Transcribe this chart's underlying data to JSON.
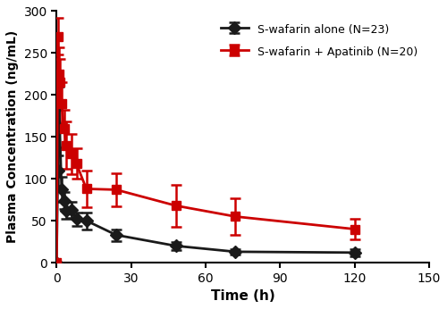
{
  "black_x": [
    0,
    0.5,
    1,
    2,
    3,
    4,
    6,
    8,
    12,
    24,
    48,
    72,
    120
  ],
  "black_y": [
    0,
    110,
    188,
    87,
    74,
    62,
    63,
    52,
    50,
    33,
    20,
    13,
    12
  ],
  "black_err": [
    0,
    18,
    22,
    15,
    10,
    10,
    10,
    8,
    10,
    7,
    5,
    3,
    4
  ],
  "red_x": [
    0,
    0.5,
    1,
    1.5,
    2,
    3,
    4,
    6,
    8,
    12,
    24,
    48,
    72,
    120
  ],
  "red_y": [
    0,
    270,
    225,
    215,
    190,
    160,
    140,
    130,
    118,
    88,
    87,
    68,
    55,
    40
  ],
  "red_err": [
    0,
    22,
    32,
    28,
    25,
    22,
    28,
    24,
    18,
    22,
    20,
    25,
    22,
    12
  ],
  "black_label": "S-wafarin alone (N=23)",
  "red_label": "S-wafarin + Apatinib (N=20)",
  "xlabel": "Time (h)",
  "ylabel": "Plasma Concentration (ng/mL)",
  "xlim": [
    0,
    150
  ],
  "ylim": [
    0,
    300
  ],
  "xticks": [
    0,
    30,
    60,
    90,
    120,
    150
  ],
  "yticks": [
    0,
    50,
    100,
    150,
    200,
    250,
    300
  ],
  "black_color": "#1a1a1a",
  "red_color": "#cc0000",
  "linewidth": 2.0,
  "markersize": 7,
  "capsize": 4,
  "elinewidth": 1.8
}
